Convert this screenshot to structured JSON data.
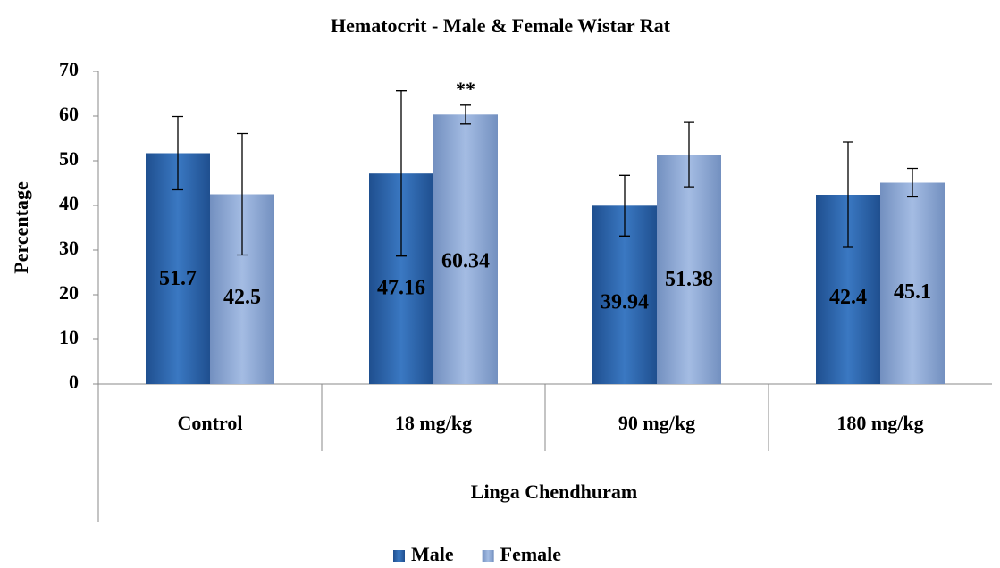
{
  "chart_data": {
    "type": "bar",
    "title": "Hematocrit - Male & Female Wistar Rat",
    "y_label": "Percentage",
    "x_label": "Linga Chendhuram",
    "categories": [
      "Control",
      "18 mg/kg",
      "90 mg/kg",
      "180 mg/kg"
    ],
    "series": [
      {
        "name": "Male",
        "color": "#2f6cb6",
        "values": [
          51.7,
          47.16,
          39.94,
          42.4
        ],
        "errors": [
          8.2,
          18.5,
          6.8,
          11.8
        ]
      },
      {
        "name": "Female",
        "color": "#93acd8",
        "values": [
          42.5,
          60.34,
          51.38,
          45.1
        ],
        "errors": [
          13.6,
          2.1,
          7.2,
          3.2
        ]
      }
    ],
    "annotations": [
      {
        "text": "**",
        "series": 1,
        "category": 1
      }
    ],
    "ylim": [
      0,
      70
    ],
    "yticks": [
      0,
      10,
      20,
      30,
      40,
      50,
      60,
      70
    ],
    "legend": "bottom"
  }
}
